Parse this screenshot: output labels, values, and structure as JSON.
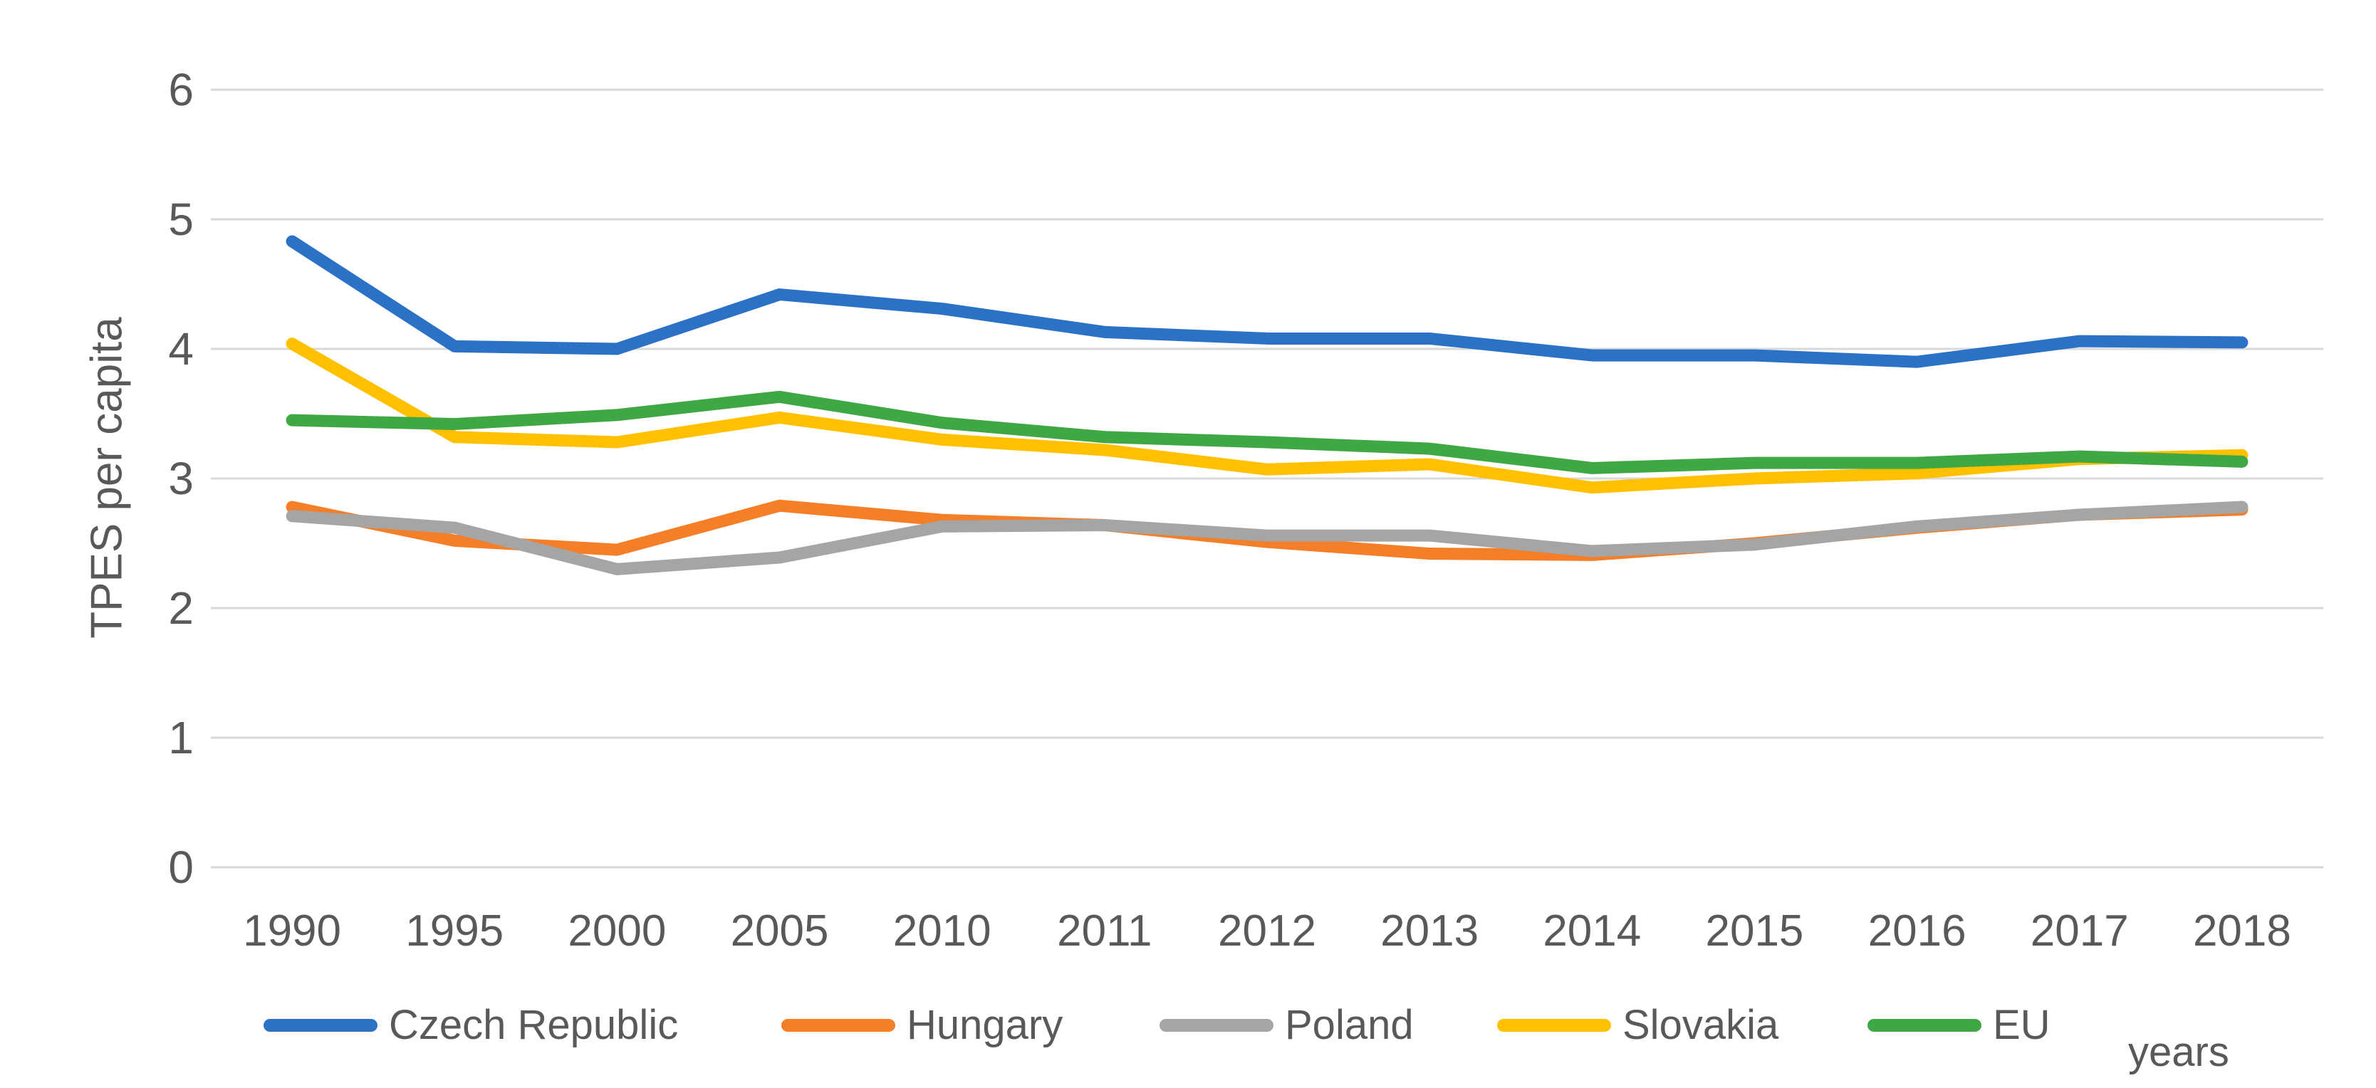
{
  "chart_data": {
    "type": "line",
    "title": "",
    "xlabel": "years",
    "ylabel": "TPES per capita",
    "categories": [
      "1990",
      "1995",
      "2000",
      "2005",
      "2010",
      "2011",
      "2012",
      "2013",
      "2014",
      "2015",
      "2016",
      "2017",
      "2018"
    ],
    "y_ticks": [
      0,
      1,
      2,
      3,
      4,
      5,
      6
    ],
    "ylim": [
      0,
      6
    ],
    "grid": "horizontal",
    "legend_position": "bottom",
    "series": [
      {
        "name": "Czech Republic",
        "color": "#2B72C7",
        "values": [
          4.83,
          4.02,
          4.0,
          4.42,
          4.31,
          4.13,
          4.08,
          4.08,
          3.95,
          3.95,
          3.9,
          4.06,
          4.05
        ]
      },
      {
        "name": "Hungary",
        "color": "#F57E28",
        "values": [
          2.78,
          2.52,
          2.45,
          2.79,
          2.68,
          2.64,
          2.51,
          2.42,
          2.41,
          2.5,
          2.62,
          2.72,
          2.76
        ]
      },
      {
        "name": "Poland",
        "color": "#A5A5A5",
        "values": [
          2.71,
          2.62,
          2.3,
          2.39,
          2.63,
          2.64,
          2.56,
          2.56,
          2.44,
          2.49,
          2.63,
          2.72,
          2.78
        ]
      },
      {
        "name": "Slovakia",
        "color": "#FFC000",
        "values": [
          4.04,
          3.32,
          3.28,
          3.47,
          3.3,
          3.22,
          3.07,
          3.11,
          2.93,
          3.0,
          3.04,
          3.15,
          3.18
        ]
      },
      {
        "name": "EU",
        "color": "#3FA845",
        "values": [
          3.45,
          3.42,
          3.49,
          3.63,
          3.43,
          3.32,
          3.28,
          3.23,
          3.08,
          3.12,
          3.12,
          3.17,
          3.13
        ]
      }
    ]
  },
  "colors": {
    "axis_text": "#595959",
    "gridline": "#D9D9D9",
    "background": "#FFFFFF"
  }
}
